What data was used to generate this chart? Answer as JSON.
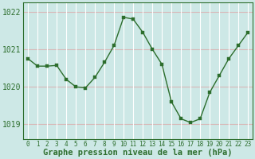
{
  "x": [
    0,
    1,
    2,
    3,
    4,
    5,
    6,
    7,
    8,
    9,
    10,
    11,
    12,
    13,
    14,
    15,
    16,
    17,
    18,
    19,
    20,
    21,
    22,
    23
  ],
  "y": [
    1020.75,
    1020.55,
    1020.55,
    1020.57,
    1020.2,
    1020.0,
    1019.97,
    1020.25,
    1020.65,
    1021.1,
    1021.85,
    1021.8,
    1021.45,
    1021.0,
    1020.6,
    1019.6,
    1019.15,
    1019.05,
    1019.15,
    1019.85,
    1020.3,
    1020.75,
    1021.1,
    1021.45
  ],
  "line_color": "#2d6e2d",
  "marker_color": "#2d6e2d",
  "bg_color": "#cde8e6",
  "vgrid_color": "#ffffff",
  "hgrid_color": "#d8b8b8",
  "axis_label_color": "#2d6e2d",
  "tick_color": "#2d6e2d",
  "spine_color": "#2d6e2d",
  "ylim": [
    1018.6,
    1022.25
  ],
  "yticks": [
    1019,
    1020,
    1021,
    1022
  ],
  "xticks": [
    0,
    1,
    2,
    3,
    4,
    5,
    6,
    7,
    8,
    9,
    10,
    11,
    12,
    13,
    14,
    15,
    16,
    17,
    18,
    19,
    20,
    21,
    22,
    23
  ],
  "xlabel": "Graphe pression niveau de la mer (hPa)",
  "xlabel_fontsize": 7.5,
  "ytick_fontsize": 7,
  "xtick_fontsize": 5.5,
  "marker_size": 2.5,
  "line_width": 1.0
}
